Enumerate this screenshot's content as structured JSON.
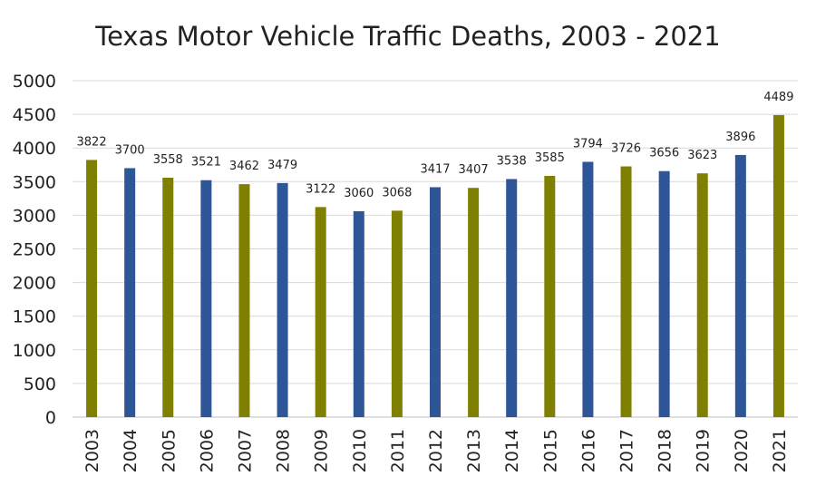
{
  "chart_data": {
    "type": "bar",
    "title": "Texas Motor Vehicle Traffic Deaths, 2003 - 2021",
    "xlabel": "",
    "ylabel": "",
    "ylim": [
      0,
      5000
    ],
    "yticks": [
      0,
      500,
      1000,
      1500,
      2000,
      2500,
      3000,
      3500,
      4000,
      4500,
      5000
    ],
    "grid": true,
    "legend": "none",
    "categories": [
      "2003",
      "2004",
      "2005",
      "2006",
      "2007",
      "2008",
      "2009",
      "2010",
      "2011",
      "2012",
      "2013",
      "2014",
      "2015",
      "2016",
      "2017",
      "2018",
      "2019",
      "2020",
      "2021"
    ],
    "values": [
      3822,
      3700,
      3558,
      3521,
      3462,
      3479,
      3122,
      3060,
      3068,
      3417,
      3407,
      3538,
      3585,
      3794,
      3726,
      3656,
      3623,
      3896,
      4489
    ],
    "bar_colors": [
      "#808000",
      "#2e5597",
      "#808000",
      "#2e5597",
      "#808000",
      "#2e5597",
      "#808000",
      "#2e5597",
      "#808000",
      "#2e5597",
      "#808000",
      "#2e5597",
      "#808000",
      "#2e5597",
      "#808000",
      "#2e5597",
      "#808000",
      "#2e5597",
      "#808000"
    ],
    "data_labels": [
      "3822",
      "3700",
      "3558",
      "3521",
      "3462",
      "3479",
      "3122",
      "3060",
      "3068",
      "3417",
      "3407",
      "3538",
      "3585",
      "3794",
      "3726",
      "3656",
      "3623",
      "3896",
      "4489"
    ]
  }
}
